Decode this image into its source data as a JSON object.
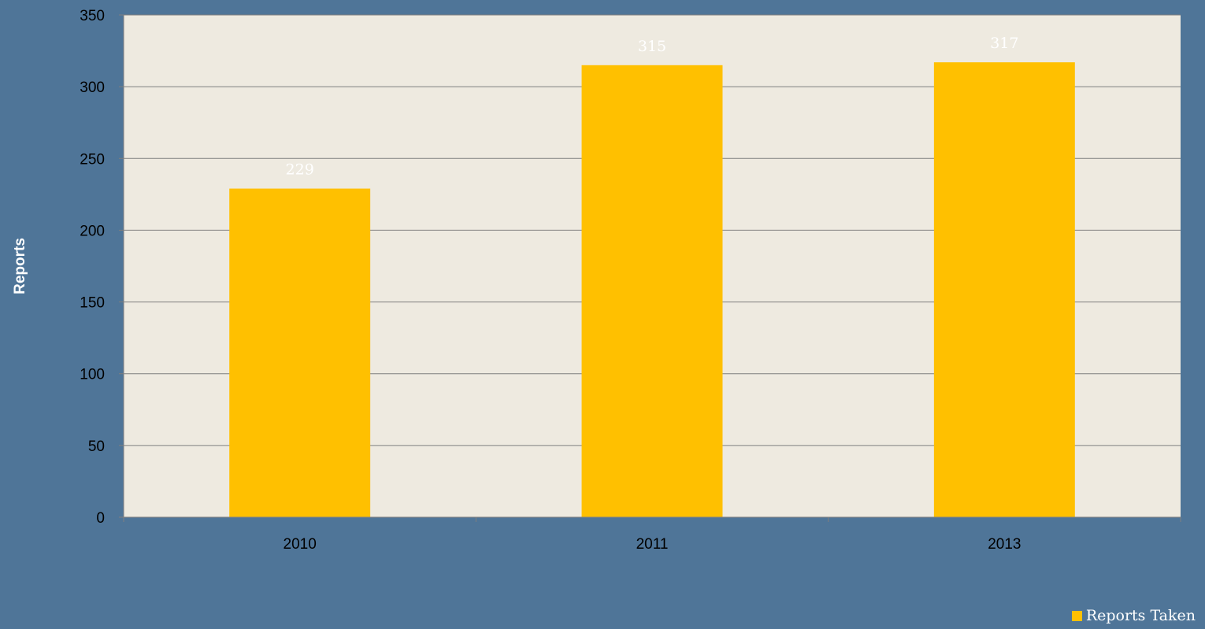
{
  "chart_data": {
    "type": "bar",
    "title": "",
    "xlabel": "",
    "ylabel": "Reports",
    "categories": [
      "2010",
      "2011",
      "2013"
    ],
    "series": [
      {
        "name": "Reports Taken",
        "values": [
          229,
          315,
          317
        ],
        "color": "#ffc000"
      }
    ],
    "ylim": [
      0,
      350
    ],
    "yticks": [
      0,
      50,
      100,
      150,
      200,
      250,
      300,
      350
    ],
    "grid": true,
    "legend_position": "bottom-right",
    "data_labels": true
  },
  "colors": {
    "background": "#4f7598",
    "plot_area": "#eeeae0",
    "gridline": "#7f7f7f",
    "bar": "#ffc000",
    "label_text": "#ffffff",
    "tick_text": "#000000"
  }
}
